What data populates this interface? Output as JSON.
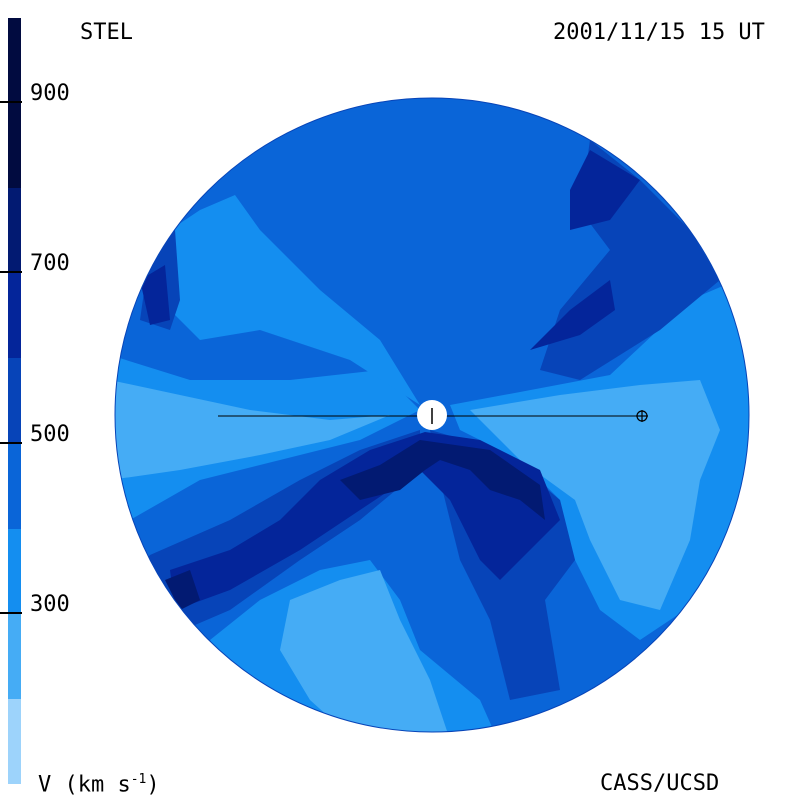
{
  "header": {
    "left_title": "STEL",
    "timestamp": "2001/11/15 15 UT"
  },
  "footer": {
    "variable_prefix": "V (km s",
    "variable_exp": "-1",
    "variable_suffix": ")",
    "credit": "CASS/UCSD"
  },
  "colorbar": {
    "min": 200,
    "max": 1100,
    "ticks": [
      {
        "label": "900",
        "value": 900
      },
      {
        "label": "700",
        "value": 700
      },
      {
        "label": "500",
        "value": 500
      },
      {
        "label": "300",
        "value": 300
      }
    ],
    "levels": [
      {
        "from": 200,
        "to": 300,
        "color": "#9dd3fb"
      },
      {
        "from": 300,
        "to": 400,
        "color": "#45acf5"
      },
      {
        "from": 400,
        "to": 500,
        "color": "#148ef0"
      },
      {
        "from": 500,
        "to": 600,
        "color": "#0a65d8"
      },
      {
        "from": 600,
        "to": 700,
        "color": "#0744b8"
      },
      {
        "from": 700,
        "to": 800,
        "color": "#04259a"
      },
      {
        "from": 800,
        "to": 900,
        "color": "#021a72"
      },
      {
        "from": 900,
        "to": 1100,
        "color": "#010b40"
      }
    ]
  },
  "markers": {
    "sun": "sun-symbol",
    "earth": "earth-symbol"
  }
}
